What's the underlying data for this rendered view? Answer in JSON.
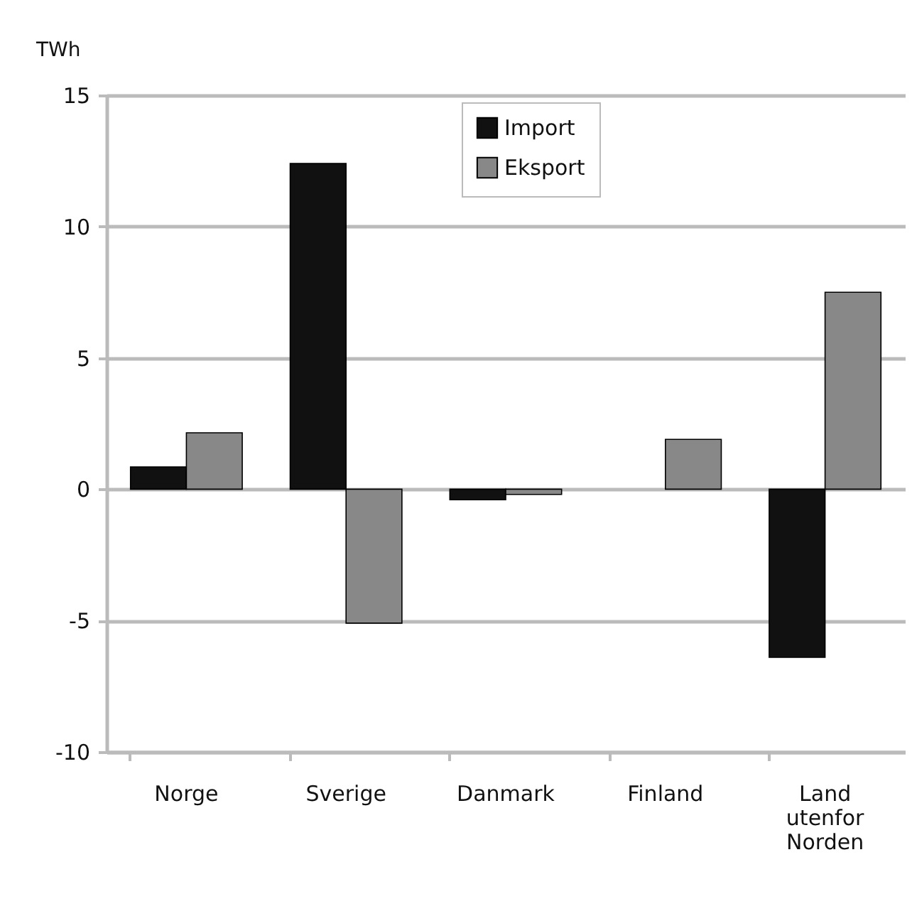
{
  "chart_data": {
    "type": "bar",
    "ylabel": "TWh",
    "categories": [
      "Norge",
      "Sverige",
      "Danmark",
      "Finland",
      "Land utenfor Norden"
    ],
    "series": [
      {
        "name": "Import",
        "color": "#111111",
        "values": [
          0.85,
          12.4,
          -0.4,
          null,
          -6.4
        ]
      },
      {
        "name": "Eksport",
        "color": "#888888",
        "values": [
          2.15,
          -5.1,
          -0.2,
          1.9,
          7.5
        ]
      }
    ],
    "ylim": [
      -10,
      15
    ],
    "yticks": [
      -10,
      -5,
      0,
      5,
      10,
      15
    ],
    "grid": "y",
    "legend": "top"
  }
}
